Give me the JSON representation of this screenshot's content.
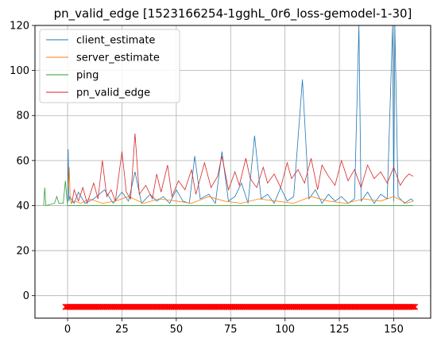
{
  "chart_data": {
    "type": "line",
    "title": "pn_valid_edge [1523166254-1gghL_0r6_loss-gemodel-1-30]",
    "xlabel": "",
    "ylabel": "",
    "xlim": [
      -15,
      167
    ],
    "ylim": [
      -10,
      120
    ],
    "xticks": [
      0,
      25,
      50,
      75,
      100,
      125,
      150
    ],
    "yticks": [
      0,
      20,
      40,
      60,
      80,
      100,
      120
    ],
    "grid": true,
    "legend_position": "upper-left",
    "series": [
      {
        "name": "client_estimate",
        "color": "#1f77b4",
        "x": [
          0,
          0.3,
          0.6,
          1,
          3,
          5,
          8,
          12,
          17,
          21,
          25,
          28,
          31,
          34,
          38,
          41,
          44,
          47,
          50,
          53,
          56,
          58.5,
          61,
          65,
          68,
          71,
          74,
          77,
          80,
          83,
          86,
          89,
          92,
          95,
          98,
          101,
          104,
          108,
          111,
          114,
          117,
          120,
          123,
          126,
          129,
          132,
          134,
          135,
          138,
          141,
          144,
          147,
          149.5,
          150,
          150.5,
          152,
          155,
          158,
          159
        ],
        "y": [
          41,
          65,
          42,
          44,
          41,
          46,
          41,
          43,
          47,
          41,
          46,
          42,
          55,
          41,
          45,
          42,
          44,
          41,
          47,
          42,
          41,
          62,
          43,
          45,
          41,
          64,
          42,
          44,
          50,
          41,
          71,
          43,
          45,
          41,
          48,
          42,
          44,
          96,
          43,
          47,
          41,
          45,
          42,
          44,
          41,
          43,
          120,
          42,
          46,
          41,
          45,
          43,
          120,
          42,
          120,
          44,
          41,
          43,
          42
        ]
      },
      {
        "name": "server_estimate",
        "color": "#ff7f0e",
        "x": [
          0.5,
          0.8,
          1.2,
          1.6,
          3,
          6,
          10,
          16,
          22,
          28,
          35,
          42,
          50,
          57,
          65,
          72,
          80,
          88,
          96,
          104,
          112,
          120,
          128,
          136,
          144,
          150,
          156,
          159
        ],
        "y": [
          48,
          57,
          44,
          41,
          42,
          41,
          43,
          41,
          42,
          44,
          41,
          43,
          42,
          41,
          44,
          42,
          41,
          43,
          42,
          41,
          44,
          42,
          41,
          43,
          42,
          44,
          41,
          42
        ]
      },
      {
        "name": "ping",
        "color": "#2ca02c",
        "x": [
          -11,
          -10.5,
          -10,
          -8,
          -6,
          -5,
          -4,
          -2,
          -1,
          0,
          2,
          4,
          5,
          6,
          10,
          20,
          40,
          60,
          80,
          100,
          120,
          140,
          150,
          159
        ],
        "y": [
          40,
          48,
          40,
          40.5,
          41,
          44,
          41,
          41,
          51,
          40,
          40,
          40,
          40,
          40,
          40,
          40,
          40,
          40,
          40,
          40,
          40,
          40,
          40,
          40
        ]
      },
      {
        "name": "pn_valid_edge",
        "color": "#d62728",
        "x": [
          2,
          3,
          5,
          7,
          9,
          12,
          14,
          16,
          18,
          20,
          22,
          25,
          27,
          29,
          31,
          33,
          36,
          39,
          41,
          43,
          46,
          48,
          51,
          54,
          57,
          59,
          63,
          66,
          69,
          71,
          74,
          77,
          79,
          82,
          84,
          87,
          90,
          92,
          95,
          98,
          101,
          103,
          106,
          109,
          112,
          115,
          117,
          120,
          123,
          126,
          129,
          132,
          135,
          138,
          141,
          144,
          147,
          150,
          153,
          155,
          157,
          159
        ],
        "y": [
          41,
          47,
          42,
          48,
          41,
          50,
          43,
          60,
          44,
          47,
          42,
          64,
          46,
          43,
          72,
          45,
          49,
          43,
          54,
          46,
          58,
          44,
          51,
          47,
          56,
          45,
          59,
          48,
          53,
          62,
          47,
          55,
          49,
          61,
          52,
          48,
          57,
          50,
          54,
          48,
          59,
          52,
          56,
          50,
          61,
          47,
          58,
          53,
          49,
          60,
          51,
          56,
          48,
          58,
          52,
          55,
          50,
          57,
          49,
          52,
          54,
          53
        ]
      }
    ],
    "markers": {
      "color": "#ff0000",
      "symbol": "x",
      "y": -5,
      "x_start": -1,
      "x_end": 160
    }
  }
}
